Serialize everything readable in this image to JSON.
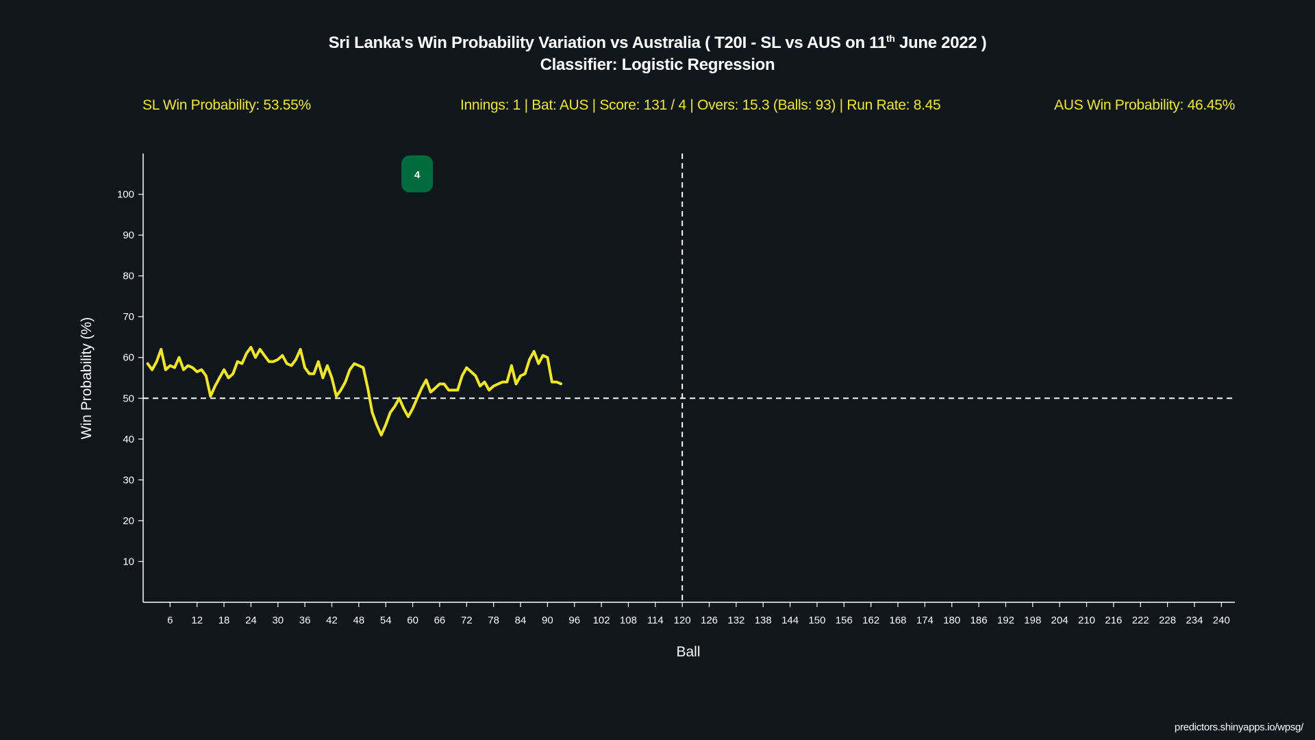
{
  "title": {
    "line1_prefix": "Sri Lanka's Win Probability Variation vs Australia ( T20I - SL vs AUS on 11",
    "line1_sup": "th",
    "line1_suffix": " June 2022 )",
    "line2": "Classifier: Logistic Regression"
  },
  "info": {
    "sl_win_probability": "SL Win Probability: 53.55%",
    "match_status": "Innings: 1 |  Bat: AUS  |  Score: 131 / 4  |  Overs: 15.3 (Balls:  93)  |  Run Rate: 8.45",
    "aus_win_probability": "AUS Win Probability: 46.45%"
  },
  "footer": "predictors.shinyapps.io/wpsg/",
  "colors": {
    "background": "#10171c",
    "line": "#f2e818",
    "wicket_badge": "#006b3c",
    "axis": "#ffffff",
    "info_text": "#f2e818"
  },
  "chart_data": {
    "type": "line",
    "xlabel": "Ball",
    "ylabel": "Win Probability (%)",
    "xlim": [
      0,
      243
    ],
    "ylim": [
      0,
      110
    ],
    "x_ticks": [
      6,
      12,
      18,
      24,
      30,
      36,
      42,
      48,
      54,
      60,
      66,
      72,
      78,
      84,
      90,
      96,
      102,
      108,
      114,
      120,
      126,
      132,
      138,
      144,
      150,
      156,
      162,
      168,
      174,
      180,
      186,
      192,
      198,
      204,
      210,
      216,
      222,
      228,
      234,
      240
    ],
    "y_ticks": [
      10,
      20,
      30,
      40,
      50,
      60,
      70,
      80,
      90,
      100
    ],
    "reference_lines": {
      "horizontal_y": 50,
      "vertical_x": 120
    },
    "series": [
      {
        "x": [
          1,
          2,
          3,
          4,
          5,
          6,
          7,
          8,
          9,
          10,
          11,
          12,
          13,
          14,
          15,
          16,
          17,
          18,
          19,
          20,
          21,
          22,
          23,
          24,
          25,
          26,
          27,
          28,
          29,
          30,
          31,
          32,
          33,
          34,
          35,
          36,
          37,
          38,
          39,
          40,
          41,
          42,
          43,
          44,
          45,
          46,
          47,
          48,
          49,
          50,
          51,
          52,
          53,
          54,
          55,
          56,
          57,
          58,
          59,
          60,
          61,
          62,
          63,
          64,
          65,
          66,
          67,
          68,
          69,
          70,
          71,
          72,
          73,
          74,
          75,
          76,
          77,
          78,
          79,
          80,
          81,
          82,
          83,
          84,
          85,
          86,
          87,
          88,
          89,
          90,
          91,
          92,
          93
        ],
        "y": [
          58.5,
          57,
          59,
          62,
          57,
          58,
          57.5,
          60,
          57,
          58,
          57.5,
          56.5,
          57,
          55.5,
          50.5,
          53,
          55,
          57,
          55,
          56,
          59,
          58.5,
          61,
          62.5,
          60,
          62,
          60.5,
          59,
          59,
          59.5,
          60.5,
          58.5,
          58,
          59.5,
          62,
          57.5,
          56,
          56,
          59,
          55,
          58,
          55,
          50.5,
          52,
          54,
          57,
          58.5,
          58,
          57.5,
          52.5,
          46.5,
          43.5,
          41,
          43.5,
          46.5,
          48,
          50,
          47.5,
          45.5,
          47.5,
          50,
          52.5,
          54.5,
          51.5,
          52.5,
          53.5,
          53.5,
          52,
          52,
          52,
          55.5,
          57.5,
          56.5,
          55.5,
          53,
          54,
          52,
          53,
          53.5,
          54,
          54,
          58,
          53.5,
          55.5,
          56,
          59.5,
          61.5,
          58.5,
          60.5,
          60,
          54,
          54,
          53.55
        ]
      }
    ],
    "annotations": [
      {
        "type": "wicket-badge",
        "label": "4",
        "x": 61,
        "y": 105
      }
    ]
  }
}
